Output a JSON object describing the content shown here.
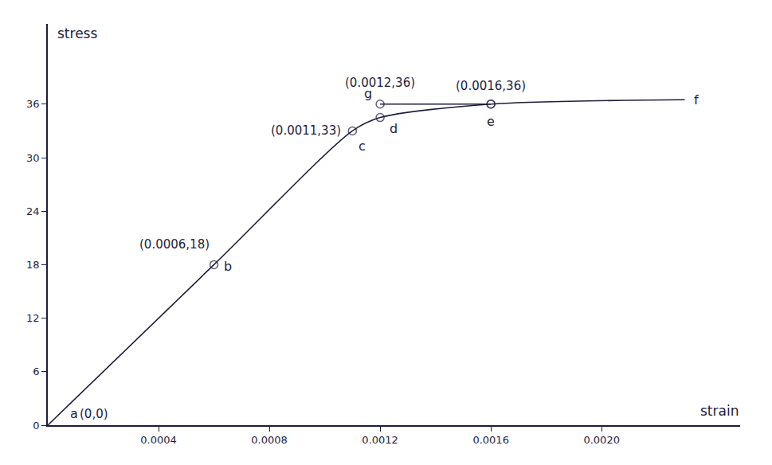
{
  "chart_data": {
    "type": "line",
    "x_label": "strain",
    "y_label": "stress",
    "xlim": [
      0,
      0.0025
    ],
    "ylim": [
      0,
      45
    ],
    "xticks": [
      0.0004,
      0.0008,
      0.0012,
      0.0016,
      {
        "value": 0.002,
        "label": "0.0020"
      }
    ],
    "yticks": [
      0,
      6,
      12,
      18,
      24,
      30,
      36
    ],
    "grid": false,
    "series": [
      {
        "x": [
          0,
          0.0006,
          0.0011,
          0.0012,
          0.0016,
          0.0023
        ],
        "values": [
          0,
          18,
          33,
          34.5,
          36,
          36.5
        ],
        "letters": [
          "a",
          "b",
          "c",
          "d",
          "e",
          "f"
        ],
        "value_labels": [
          "(0,0)",
          "(0.0006,18)",
          "(0.0011,33)",
          null,
          "(0.0016,36)",
          null
        ],
        "color": "#1f1d3d",
        "line_style": "smooth",
        "marker": "circle-open"
      },
      {
        "x": [
          0.0012,
          0.0016
        ],
        "values": [
          36,
          36
        ],
        "letters": [
          "g",
          null
        ],
        "value_labels": [
          "(0.0012,36)",
          null
        ],
        "color": "#1f1d3d",
        "line_style": "solid",
        "marker": "circle-open"
      }
    ]
  }
}
